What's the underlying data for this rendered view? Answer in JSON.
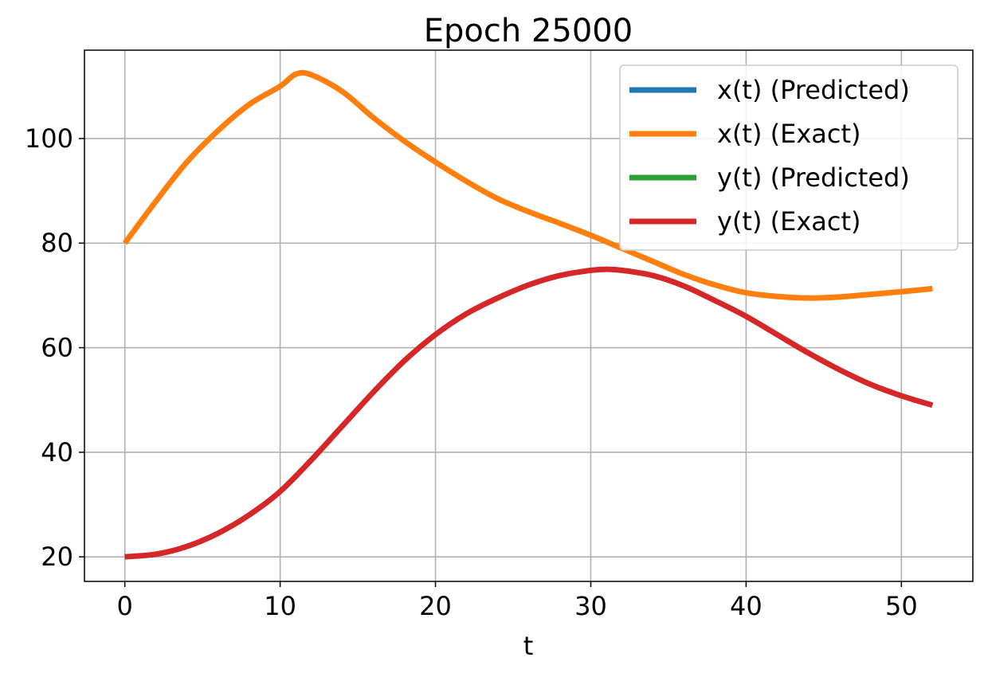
{
  "chart_data": {
    "type": "line",
    "title": "Epoch 25000",
    "xlabel": "t",
    "ylabel": "",
    "xlim": [
      -2.6,
      54.6
    ],
    "ylim": [
      15.3,
      116.9
    ],
    "xticks": [
      0,
      10,
      20,
      30,
      40,
      50
    ],
    "yticks": [
      20,
      40,
      60,
      80,
      100
    ],
    "grid": true,
    "legend_position": "top-right",
    "series": [
      {
        "name": "x(t) (Predicted)",
        "color": "#1f77b4",
        "x": [
          0,
          2,
          4,
          6,
          8,
          10,
          11,
          12,
          14,
          16,
          18,
          20,
          22,
          24,
          26,
          28,
          30,
          32,
          34,
          36,
          38,
          40,
          42,
          44,
          46,
          48,
          50,
          52
        ],
        "y": [
          80,
          88,
          95.5,
          101.5,
          106.5,
          110,
          112.3,
          112.2,
          109,
          104,
          99.5,
          95.5,
          91.8,
          88.5,
          86,
          83.8,
          81.5,
          79,
          76.5,
          74,
          72,
          70.5,
          69.8,
          69.5,
          69.7,
          70.2,
          70.7,
          71.3
        ]
      },
      {
        "name": "x(t) (Exact)",
        "color": "#ff7f0e",
        "x": [
          0,
          2,
          4,
          6,
          8,
          10,
          11,
          12,
          14,
          16,
          18,
          20,
          22,
          24,
          26,
          28,
          30,
          32,
          34,
          36,
          38,
          40,
          42,
          44,
          46,
          48,
          50,
          52
        ],
        "y": [
          80,
          88,
          95.5,
          101.5,
          106.5,
          110,
          112.3,
          112.2,
          109,
          104,
          99.5,
          95.5,
          91.8,
          88.5,
          86,
          83.8,
          81.5,
          79,
          76.5,
          74,
          72,
          70.5,
          69.8,
          69.5,
          69.7,
          70.2,
          70.7,
          71.3
        ]
      },
      {
        "name": "y(t) (Predicted)",
        "color": "#2ca02c",
        "x": [
          0,
          2,
          4,
          6,
          8,
          10,
          12,
          14,
          16,
          18,
          20,
          22,
          24,
          26,
          28,
          30,
          31,
          32,
          34,
          36,
          38,
          40,
          42,
          44,
          46,
          48,
          50,
          52
        ],
        "y": [
          20,
          20.5,
          22,
          24.5,
          28,
          32.5,
          38.5,
          45,
          51.5,
          57.5,
          62.5,
          66.5,
          69.5,
          72,
          73.8,
          74.8,
          75,
          74.8,
          73.8,
          71.8,
          69,
          66,
          62.5,
          59,
          55.8,
          53,
          50.8,
          49
        ]
      },
      {
        "name": "y(t) (Exact)",
        "color": "#d62728",
        "x": [
          0,
          2,
          4,
          6,
          8,
          10,
          12,
          14,
          16,
          18,
          20,
          22,
          24,
          26,
          28,
          30,
          31,
          32,
          34,
          36,
          38,
          40,
          42,
          44,
          46,
          48,
          50,
          52
        ],
        "y": [
          20,
          20.5,
          22,
          24.5,
          28,
          32.5,
          38.5,
          45,
          51.5,
          57.5,
          62.5,
          66.5,
          69.5,
          72,
          73.8,
          74.8,
          75,
          74.8,
          73.8,
          71.8,
          69,
          66,
          62.5,
          59,
          55.8,
          53,
          50.8,
          49
        ]
      }
    ]
  }
}
